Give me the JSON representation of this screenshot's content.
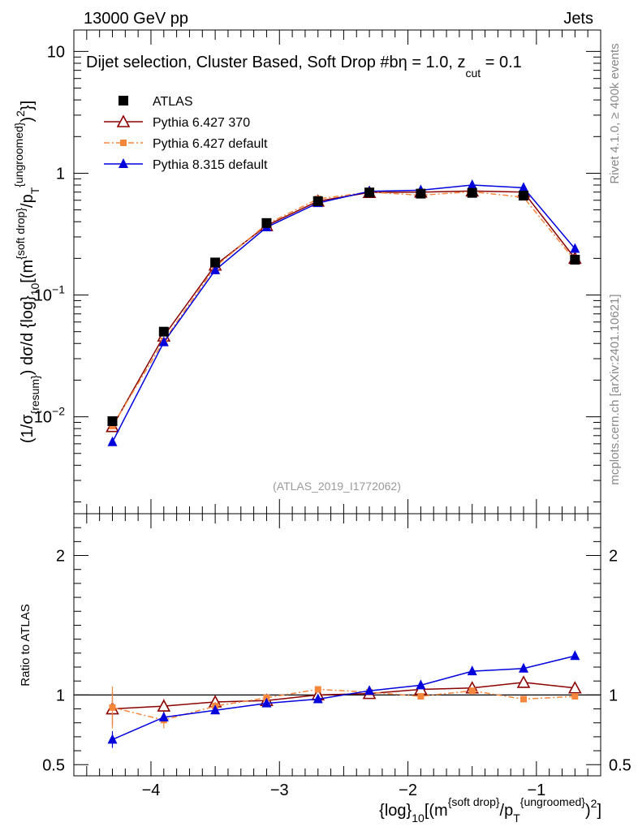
{
  "header": {
    "energy_label": "13000 GeV pp",
    "category_label": "Jets"
  },
  "side_labels": {
    "rivet": "Rivet 4.1.0, ≥ 400k events",
    "mcplots": "mcplots.cern.ch [arXiv:2401.10621]"
  },
  "colors": {
    "atlas": "#000000",
    "pythia6_370": "#8b0000",
    "pythia6_default": "#f5873d",
    "pythia8": "#0000dd"
  },
  "chart_data": [
    {
      "type": "line",
      "panel": "main",
      "title": "Dijet selection, Cluster Based, Soft Drop #b",
      "title_parts": {
        "main": "Dijet selection, Cluster Based, Soft Drop #b",
        "beta_suffix": "η = 1.0, z",
        "zcut_sub": "cut",
        "zcut_value": " = 0.1"
      },
      "ylabel_parts": {
        "p1": "(1/σ",
        "p1_sub": "{resum}",
        "p2": ") dσ/d {log}",
        "p2_sub": "10",
        "p3": "[(m",
        "p3_sup": "{soft drop}",
        "p4": "/p",
        "p4_sub": "T",
        "p4_sup": "{ungroomed}",
        "p5": ")",
        "p5_sup": "2",
        "p6": "}]"
      },
      "yscale": "log",
      "ylim": [
        0.0016,
        15
      ],
      "xlim": [
        -4.6,
        -0.5
      ],
      "yticks": [
        {
          "value": 10,
          "label": "10"
        },
        {
          "value": 1,
          "label": "1"
        },
        {
          "value": 0.1,
          "label": "10",
          "exp": "−1"
        },
        {
          "value": 0.01,
          "label": "10",
          "exp": "−2"
        }
      ],
      "x": [
        -4.3,
        -3.9,
        -3.5,
        -3.1,
        -2.7,
        -2.3,
        -1.9,
        -1.5,
        -1.1,
        -0.7
      ],
      "series": [
        {
          "name": "ATLAS",
          "key": "atlas",
          "marker": "square",
          "values": [
            0.0092,
            0.05,
            0.185,
            0.39,
            0.59,
            0.695,
            0.68,
            0.69,
            0.655,
            0.195
          ]
        },
        {
          "name": "Pythia 6.427 370",
          "key": "pythia6_370",
          "marker": "open-triangle",
          "values": [
            0.0083,
            0.046,
            0.176,
            0.372,
            0.59,
            0.695,
            0.7,
            0.715,
            0.7,
            0.2
          ]
        },
        {
          "name": "Pythia 6.427 default",
          "key": "pythia6_default",
          "marker": "square-small",
          "dashed": true,
          "values": [
            0.0084,
            0.042,
            0.17,
            0.382,
            0.615,
            0.7,
            0.66,
            0.705,
            0.635,
            0.192
          ]
        },
        {
          "name": "Pythia 8.315 default",
          "key": "pythia8",
          "marker": "filled-triangle",
          "values": [
            0.0062,
            0.041,
            0.16,
            0.36,
            0.57,
            0.71,
            0.725,
            0.8,
            0.76,
            0.24
          ]
        }
      ],
      "annotation": "(ATLAS_2019_I1772062)"
    },
    {
      "type": "line",
      "panel": "ratio",
      "ylabel": "Ratio to ATLAS",
      "ylim": [
        0.42,
        2.3
      ],
      "xlim": [
        -4.6,
        -0.5
      ],
      "yticks": [
        {
          "value": 2,
          "label": "2"
        },
        {
          "value": 1,
          "label": "1"
        },
        {
          "value": 0.5,
          "label": "0.5"
        }
      ],
      "xticks": [
        {
          "value": -4,
          "label": "−4"
        },
        {
          "value": -3,
          "label": "−3"
        },
        {
          "value": -2,
          "label": "−2"
        },
        {
          "value": -1,
          "label": "−1"
        }
      ],
      "xlabel_parts": {
        "p1": "{log}",
        "p1_sub": "10",
        "p2": "[(m",
        "p2_sup": "{soft drop}",
        "p3": "/p",
        "p3_sub": "T",
        "p3_sup": "{ungroomed}",
        "p4": ")",
        "p4_sup": "2",
        "p5": "]"
      },
      "x": [
        -4.3,
        -3.9,
        -3.5,
        -3.1,
        -2.7,
        -2.3,
        -1.9,
        -1.5,
        -1.1,
        -0.7
      ],
      "series": [
        {
          "name": "Pythia 6.427 370",
          "key": "pythia6_370",
          "marker": "open-triangle",
          "values": [
            0.9,
            0.92,
            0.95,
            0.96,
            1.0,
            1.01,
            1.04,
            1.05,
            1.09,
            1.05
          ],
          "errors": [
            0.12,
            0.05,
            0.03,
            0.02,
            0.01,
            0.01,
            0.01,
            0.01,
            0.01,
            0.02
          ]
        },
        {
          "name": "Pythia 6.427 default",
          "key": "pythia6_default",
          "marker": "square-small",
          "dashed": true,
          "values": [
            0.91,
            0.82,
            0.92,
            0.98,
            1.04,
            1.02,
            0.99,
            1.03,
            0.97,
            0.99
          ],
          "errors": [
            0.15,
            0.06,
            0.03,
            0.02,
            0.01,
            0.01,
            0.01,
            0.01,
            0.01,
            0.02
          ]
        },
        {
          "name": "Pythia 8.315 default",
          "key": "pythia8",
          "marker": "filled-triangle",
          "values": [
            0.68,
            0.84,
            0.89,
            0.94,
            0.97,
            1.03,
            1.07,
            1.17,
            1.19,
            1.28
          ],
          "errors": [
            0.06,
            0.03,
            0.02,
            0.01,
            0.01,
            0.01,
            0.01,
            0.01,
            0.01,
            0.02
          ]
        }
      ]
    }
  ]
}
